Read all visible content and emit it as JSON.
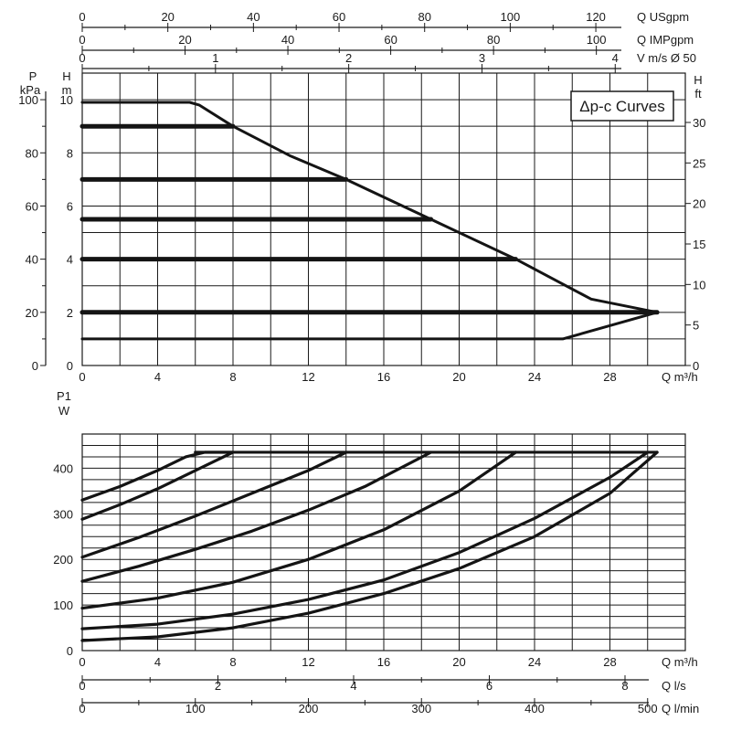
{
  "chart_data": [
    {
      "type": "line",
      "name": "head-chart",
      "badge": "Δp-c Curves",
      "left_axis_pressure": {
        "label": "P",
        "unit": "kPa",
        "ticks": [
          "0",
          "20",
          "40",
          "60",
          "80",
          "100"
        ],
        "values": [
          0,
          20,
          40,
          60,
          80,
          100
        ]
      },
      "left_axis_head_m": {
        "label": "H",
        "unit": "m",
        "ticks": [
          "0",
          "2",
          "4",
          "6",
          "8",
          "10"
        ],
        "values": [
          0,
          2,
          4,
          6,
          8,
          10
        ]
      },
      "right_axis_head_ft": {
        "label": "H",
        "unit": "ft",
        "ticks": [
          "0",
          "5",
          "10",
          "15",
          "20",
          "25",
          "30"
        ],
        "values": [
          0,
          5,
          10,
          15,
          20,
          25,
          30
        ]
      },
      "x_axis": {
        "label": "Q m³/h",
        "ticks": [
          "0",
          "4",
          "8",
          "12",
          "16",
          "20",
          "24",
          "28"
        ],
        "values": [
          0,
          4,
          8,
          12,
          16,
          20,
          24,
          28
        ],
        "range": [
          0,
          32
        ]
      },
      "top_axes": [
        {
          "label": "Q USgpm",
          "ticks": [
            "0",
            "20",
            "40",
            "60",
            "80",
            "100",
            "120"
          ],
          "values": [
            0,
            20,
            40,
            60,
            80,
            100,
            120
          ]
        },
        {
          "label": "Q IMPgpm",
          "ticks": [
            "0",
            "20",
            "40",
            "60",
            "80",
            "100"
          ],
          "values": [
            0,
            20,
            40,
            60,
            80,
            100
          ]
        },
        {
          "label": "V m/s Ø 50",
          "ticks": [
            "0",
            "1",
            "2",
            "3",
            "4"
          ],
          "values": [
            0,
            1,
            2,
            3,
            4
          ]
        }
      ],
      "ylim_m": [
        0,
        11
      ],
      "series": [
        {
          "x": [
            0,
            5.7,
            6.2,
            8.0,
            11.0,
            14.0,
            18.5,
            23.0,
            27.0,
            30.5,
            26.5,
            25.5,
            0
          ],
          "y": [
            9.9,
            9.9,
            9.8,
            9.0,
            7.9,
            7.0,
            5.5,
            4.0,
            2.5,
            2.0,
            1.2,
            1.0,
            1.0
          ],
          "closed": false
        },
        {
          "x": [
            0,
            8.0
          ],
          "y": [
            9.0,
            9.0
          ]
        },
        {
          "x": [
            0,
            14.0
          ],
          "y": [
            7.0,
            7.0
          ]
        },
        {
          "x": [
            0,
            18.5
          ],
          "y": [
            5.5,
            5.5
          ]
        },
        {
          "x": [
            0,
            23.0
          ],
          "y": [
            4.0,
            4.0
          ]
        },
        {
          "x": [
            0,
            30.5
          ],
          "y": [
            2.0,
            2.0
          ]
        }
      ]
    },
    {
      "type": "line",
      "name": "power-chart",
      "y_axis": {
        "label": "P1",
        "unit": "W",
        "ticks": [
          "0",
          "100",
          "200",
          "300",
          "400"
        ],
        "values": [
          0,
          100,
          200,
          300,
          400
        ],
        "range": [
          0,
          475
        ]
      },
      "x_axis": {
        "label": "Q m³/h",
        "ticks": [
          "0",
          "4",
          "8",
          "12",
          "16",
          "20",
          "24",
          "28"
        ],
        "values": [
          0,
          4,
          8,
          12,
          16,
          20,
          24,
          28
        ],
        "range": [
          0,
          32
        ]
      },
      "bottom_axes": [
        {
          "label": "Q l/s",
          "ticks": [
            "0",
            "2",
            "4",
            "6",
            "8"
          ],
          "values": [
            0,
            2,
            4,
            6,
            8
          ]
        },
        {
          "label": "Q l/min",
          "ticks": [
            "0",
            "100",
            "200",
            "300",
            "400",
            "500"
          ],
          "values": [
            0,
            100,
            200,
            300,
            400,
            500
          ]
        }
      ],
      "series": [
        {
          "x": [
            0,
            2,
            4,
            5.5,
            6.5,
            8.0
          ],
          "y": [
            330,
            360,
            395,
            425,
            435,
            435
          ]
        },
        {
          "x": [
            0,
            2,
            4,
            6,
            8.0
          ],
          "y": [
            288,
            320,
            355,
            395,
            435
          ]
        },
        {
          "x": [
            0,
            3,
            6,
            9,
            12,
            14.0
          ],
          "y": [
            205,
            248,
            295,
            345,
            395,
            435
          ]
        },
        {
          "x": [
            0,
            3,
            6,
            9,
            12,
            15,
            18.5
          ],
          "y": [
            152,
            185,
            222,
            262,
            308,
            360,
            435
          ]
        },
        {
          "x": [
            0,
            4,
            8,
            12,
            16,
            20,
            23.0
          ],
          "y": [
            93,
            115,
            150,
            200,
            265,
            350,
            435
          ]
        },
        {
          "x": [
            0,
            4,
            8,
            12,
            16,
            20,
            24,
            28,
            30.0
          ],
          "y": [
            48,
            58,
            80,
            112,
            155,
            215,
            290,
            380,
            435
          ]
        },
        {
          "x": [
            0,
            4,
            8,
            12,
            16,
            20,
            24,
            28,
            30.5
          ],
          "y": [
            22,
            30,
            50,
            82,
            125,
            180,
            250,
            345,
            435
          ]
        }
      ]
    }
  ]
}
